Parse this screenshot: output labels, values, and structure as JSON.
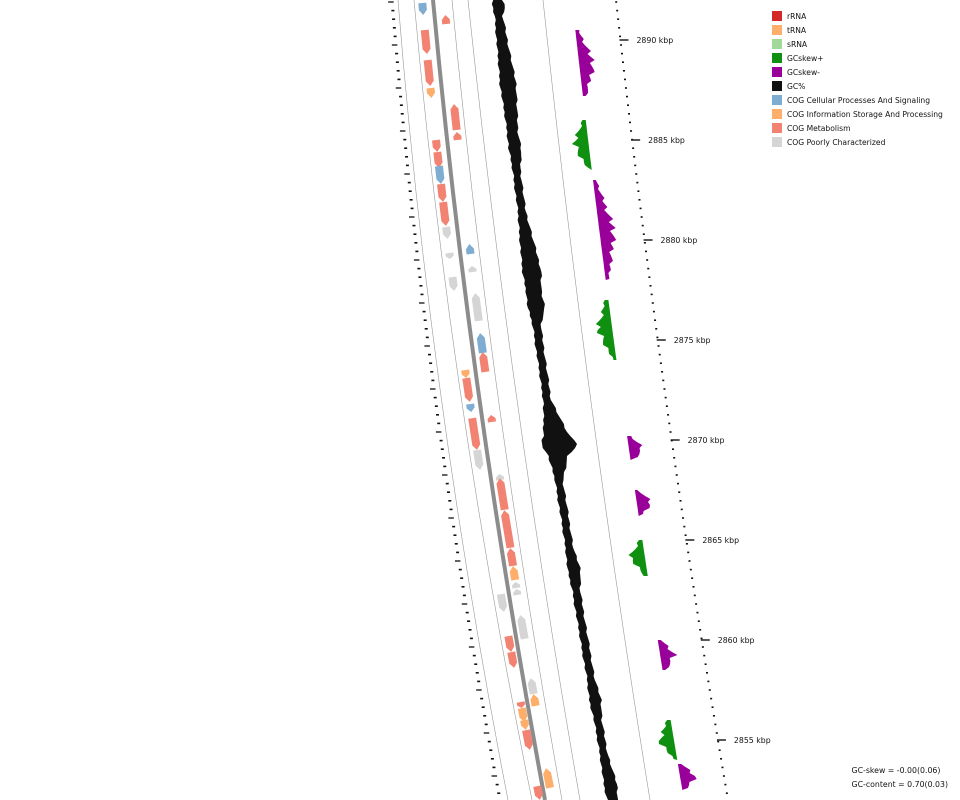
{
  "legend": [
    {
      "label": "rRNA",
      "color": "#d62728"
    },
    {
      "label": "tRNA",
      "color": "#fdae6b"
    },
    {
      "label": "sRNA",
      "color": "#a1d99b"
    },
    {
      "label": "GCskew+",
      "color": "#109010"
    },
    {
      "label": "GCskew-",
      "color": "#990099"
    },
    {
      "label": "GC%",
      "color": "#111111"
    },
    {
      "label": "COG Cellular Processes And Signaling",
      "color": "#7fadd2"
    },
    {
      "label": "COG Information Storage And Processing",
      "color": "#fdae6b"
    },
    {
      "label": "COG Metabolism",
      "color": "#f28372"
    },
    {
      "label": "COG Poorly Characterized",
      "color": "#d5d5d5"
    }
  ],
  "ruler": {
    "unit": "kbp",
    "labels": [
      "2890 kbp",
      "2885 kbp",
      "2880 kbp",
      "2875 kbp",
      "2870 kbp",
      "2865 kbp",
      "2860 kbp",
      "2855 kbp"
    ]
  },
  "stats": {
    "gc_skew": "GC-skew = -0.00(0.06)",
    "gc_content": "GC-content = 0.70(0.03)"
  },
  "chart_data": {
    "type": "circular-genome-map",
    "title": "",
    "range_kbp": [
      2852,
      2892
    ],
    "axis_ticks_kbp": [
      2890,
      2885,
      2880,
      2875,
      2870,
      2865,
      2860,
      2855
    ],
    "tracks": [
      "CDS forward strand",
      "CDS reverse strand",
      "GC content",
      "GC skew"
    ],
    "gc_skew_segments": [
      {
        "from": 2890.5,
        "to": 2887.2,
        "sign": "-"
      },
      {
        "from": 2886.0,
        "to": 2883.5,
        "sign": "+"
      },
      {
        "from": 2883.0,
        "to": 2878.0,
        "sign": "-"
      },
      {
        "from": 2877.0,
        "to": 2874.0,
        "sign": "+"
      },
      {
        "from": 2870.2,
        "to": 2869.0,
        "sign": "-"
      },
      {
        "from": 2867.5,
        "to": 2866.2,
        "sign": "-"
      },
      {
        "from": 2865.0,
        "to": 2863.2,
        "sign": "+"
      },
      {
        "from": 2860.0,
        "to": 2858.5,
        "sign": "-"
      },
      {
        "from": 2856.0,
        "to": 2854.0,
        "sign": "+"
      },
      {
        "from": 2853.8,
        "to": 2852.5,
        "sign": "-"
      }
    ]
  }
}
